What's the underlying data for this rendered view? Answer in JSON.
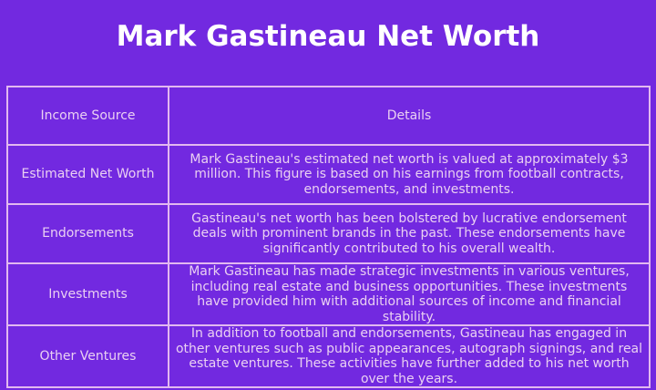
{
  "title": "Mark Gastineau Net Worth",
  "colors": {
    "background": "#7229e0",
    "border": "#e2b8f0",
    "text": "#ead0f2",
    "title": "#ffffff"
  },
  "table": {
    "headers": [
      "Income Source",
      "Details"
    ],
    "rows": [
      {
        "source": "Estimated Net Worth",
        "details": "Mark Gastineau's estimated net worth is valued at approximately $3 million. This figure is based on his earnings from football contracts, endorsements, and investments."
      },
      {
        "source": "Endorsements",
        "details": "Gastineau's net worth has been bolstered by lucrative endorsement deals with prominent brands in the past. These endorsements have significantly contributed to his overall wealth."
      },
      {
        "source": "Investments",
        "details": "Mark Gastineau has made strategic investments in various ventures, including real estate and business opportunities. These investments have provided him with additional sources of income and financial stability."
      },
      {
        "source": "Other Ventures",
        "details": "In addition to football and endorsements, Gastineau has engaged in other ventures such as public appearances, autograph signings, and real estate ventures. These activities have further added to his net worth over the years."
      }
    ]
  }
}
